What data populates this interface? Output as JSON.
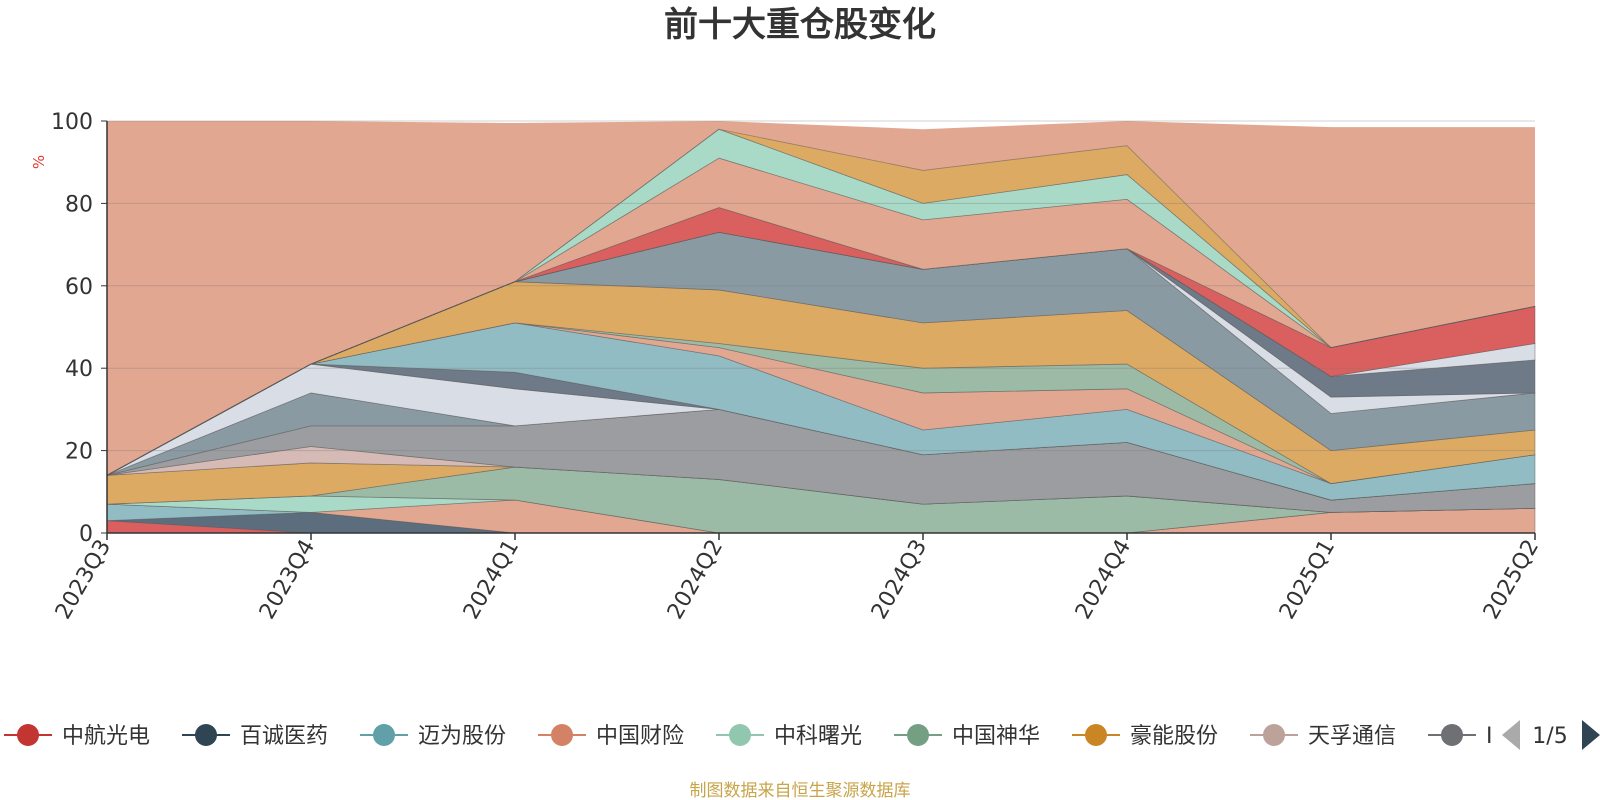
{
  "chart_data": {
    "type": "area",
    "stacked": true,
    "title": "前十大重仓股变化",
    "ylabel": "%",
    "ylim": [
      0,
      100
    ],
    "yticks": [
      0,
      20,
      40,
      60,
      80,
      100
    ],
    "grid": true,
    "categories": [
      "2023Q3",
      "2023Q4",
      "2024Q1",
      "2024Q2",
      "2024Q3",
      "2024Q4",
      "2025Q1",
      "2025Q2"
    ],
    "series": [
      {
        "name": "中航光电",
        "color": "#d9605f",
        "values": [
          3,
          0,
          0,
          0,
          0,
          0,
          0,
          0
        ]
      },
      {
        "name": "百诚医药",
        "color": "#5c6e7e",
        "values": [
          0,
          5,
          0,
          0,
          0,
          0,
          0,
          0
        ]
      },
      {
        "name": "迈为股份",
        "color": "#92bcc3",
        "values": [
          4,
          0,
          0,
          0,
          0,
          0,
          0,
          0
        ]
      },
      {
        "name": "中国财险",
        "color": "#e2a790",
        "values": [
          0,
          0,
          8,
          0,
          0,
          0,
          5,
          6
        ]
      },
      {
        "name": "中科曙光",
        "color": "#a9dac8",
        "values": [
          0,
          4,
          0,
          0,
          0,
          0,
          0,
          0
        ]
      },
      {
        "name": "中国神华",
        "color": "#9cbba6",
        "values": [
          0,
          0,
          8,
          13,
          7,
          9,
          0,
          0
        ]
      },
      {
        "name": "豪能股份",
        "color": "#dcaa63",
        "values": [
          7,
          8,
          0,
          0,
          0,
          0,
          0,
          0
        ]
      },
      {
        "name": "天孚通信",
        "color": "#d5bab5",
        "values": [
          0,
          4,
          0,
          0,
          0,
          0,
          0,
          0
        ]
      },
      {
        "name": "",
        "color": "#9c9da0",
        "values": [
          0,
          5,
          10,
          17,
          12,
          13,
          3,
          6
        ]
      },
      {
        "name": "",
        "color": "#8a9aa3",
        "values": [
          0,
          8,
          0,
          0,
          0,
          0,
          0,
          0
        ]
      },
      {
        "name": "",
        "color": "#d9dde5",
        "values": [
          0,
          7,
          9,
          0,
          0,
          0,
          0,
          0
        ]
      },
      {
        "name": "",
        "color": "#6e7a88",
        "values": [
          0,
          0,
          4,
          0,
          0,
          0,
          0,
          0
        ]
      },
      {
        "name": "",
        "color": "#92bcc3",
        "values": [
          0,
          0,
          12,
          13,
          6,
          8,
          4,
          7
        ]
      },
      {
        "name": "",
        "color": "#e2a790",
        "values": [
          0,
          0,
          0,
          2,
          9,
          5,
          0,
          0
        ]
      },
      {
        "name": "",
        "color": "#9cbba6",
        "values": [
          0,
          0,
          0,
          1,
          6,
          6,
          0,
          0
        ]
      },
      {
        "name": "",
        "color": "#dcaa63",
        "values": [
          0,
          0,
          10,
          13,
          11,
          13,
          8,
          6
        ]
      },
      {
        "name": "",
        "color": "#8a9aa3",
        "values": [
          0,
          0,
          0,
          14,
          13,
          15,
          9,
          9
        ]
      },
      {
        "name": "",
        "color": "#d9dde5",
        "values": [
          0,
          0,
          0,
          0,
          0,
          0,
          4,
          0
        ]
      },
      {
        "name": "",
        "color": "#6e7a88",
        "values": [
          0,
          0,
          0,
          0,
          0,
          0,
          5,
          8
        ]
      },
      {
        "name": "",
        "color": "#d9dde5",
        "values": [
          0,
          0,
          0,
          0,
          0,
          0,
          0,
          4
        ]
      },
      {
        "name": "",
        "color": "#d9605f",
        "values": [
          0,
          0,
          0,
          6,
          0,
          0,
          7,
          9
        ]
      },
      {
        "name": "",
        "color": "#e2a790",
        "values": [
          0,
          0,
          0,
          12,
          12,
          12,
          0,
          0
        ]
      },
      {
        "name": "",
        "color": "#a9dac8",
        "values": [
          0,
          0,
          0,
          7,
          4,
          6,
          0,
          0
        ]
      },
      {
        "name": "",
        "color": "#dcaa63",
        "values": [
          0,
          0,
          0,
          0,
          8,
          7,
          0,
          0
        ]
      }
    ]
  },
  "legend": {
    "items": [
      {
        "name": "中航光电",
        "color": "#c23531"
      },
      {
        "name": "百诚医药",
        "color": "#2f4554"
      },
      {
        "name": "迈为股份",
        "color": "#61a0a8"
      },
      {
        "name": "中国财险",
        "color": "#d48265"
      },
      {
        "name": "中科曙光",
        "color": "#91c7ae"
      },
      {
        "name": "中国神华",
        "color": "#749f83"
      },
      {
        "name": "豪能股份",
        "color": "#ca8622"
      },
      {
        "name": "天孚通信",
        "color": "#bda29a"
      },
      {
        "name": "I",
        "color": "#6e7074"
      }
    ],
    "page": "1/5"
  },
  "source": "制图数据来自恒生聚源数据库",
  "background_fill": {
    "color": "#e2a790",
    "top_values": [
      100,
      100,
      99.5,
      100,
      98,
      100,
      98.5,
      98.5
    ]
  }
}
